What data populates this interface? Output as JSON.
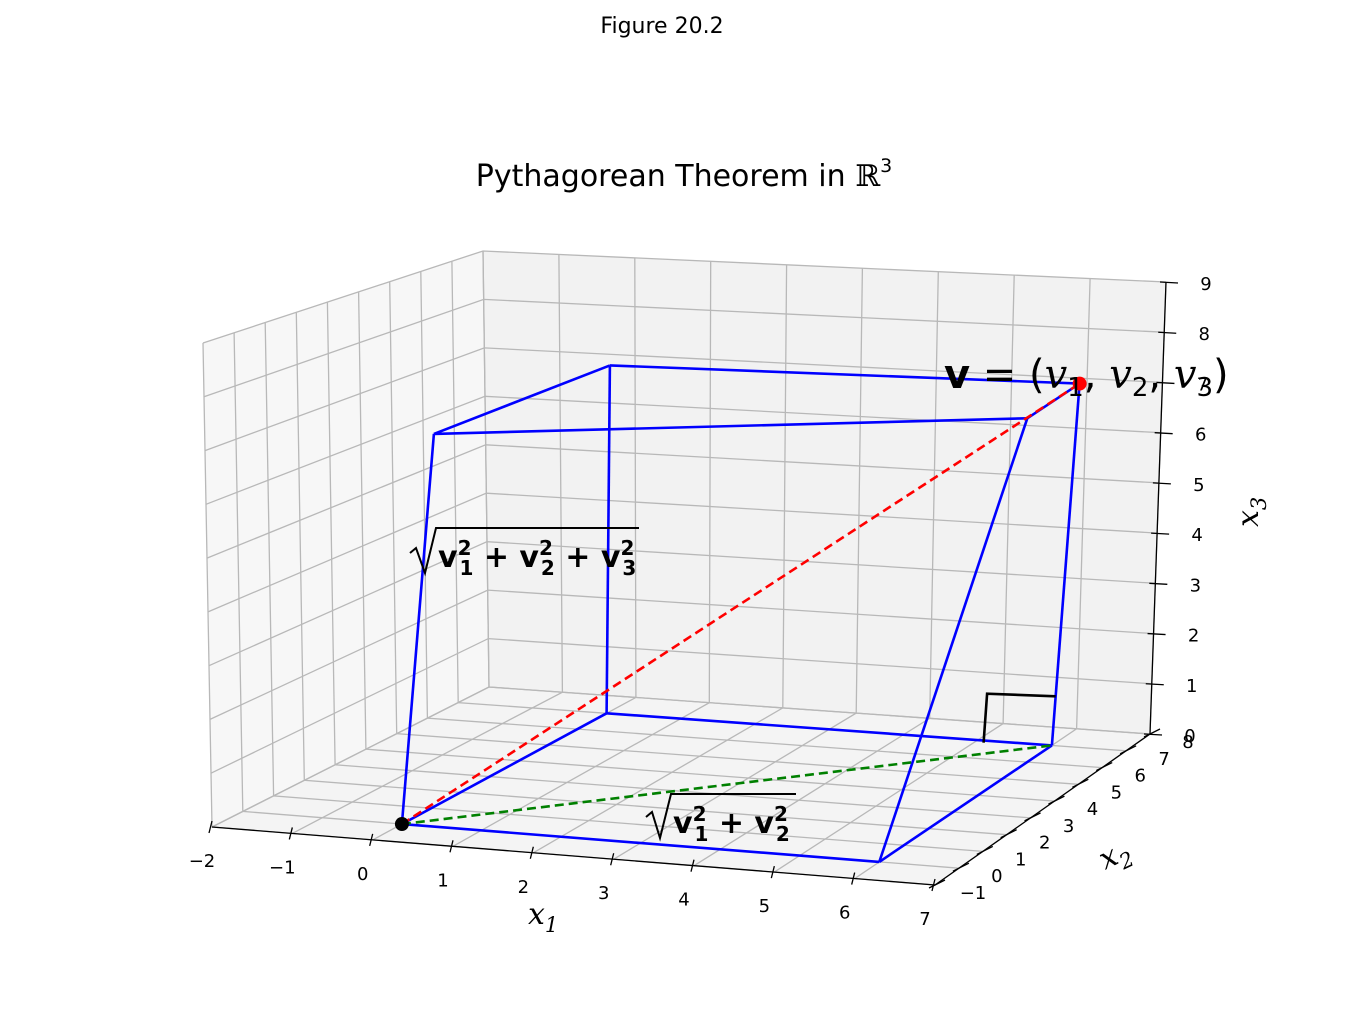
{
  "figure": {
    "suptitle": "Figure 20.2"
  },
  "chart_data": {
    "type": "3d-line",
    "title": "Pythagorean Theorem in ℝ³",
    "title_text": "Pythagorean Theorem in ",
    "title_symbol": "ℝ",
    "title_exponent": "3",
    "xlabel": "x1",
    "ylabel": "x2",
    "zlabel": "x3",
    "xlim": [
      -2,
      7
    ],
    "ylim": [
      -1,
      8
    ],
    "zlim": [
      0,
      9
    ],
    "xticks": [
      -2,
      -1,
      0,
      1,
      2,
      3,
      4,
      5,
      6,
      7
    ],
    "yticks": [
      -1,
      0,
      1,
      2,
      3,
      4,
      5,
      6,
      7,
      8
    ],
    "zticks": [
      0,
      1,
      2,
      3,
      4,
      5,
      6,
      7,
      8,
      9
    ],
    "grid": true,
    "origin": [
      0,
      0,
      0
    ],
    "vector": [
      6,
      7,
      7
    ],
    "box_color": "#0000ff",
    "diagonal_color": "#ff0000",
    "base_diagonal_color": "#008000",
    "right_angle_color": "#000000",
    "point_origin_color": "#000000",
    "point_vector_color": "#ff0000",
    "annotations": {
      "vector_label": "v = (v1, v2, v3)",
      "diagonal_label": "√(v1² + v2² + v3²)",
      "base_label": "√(v1² + v2²)"
    }
  }
}
